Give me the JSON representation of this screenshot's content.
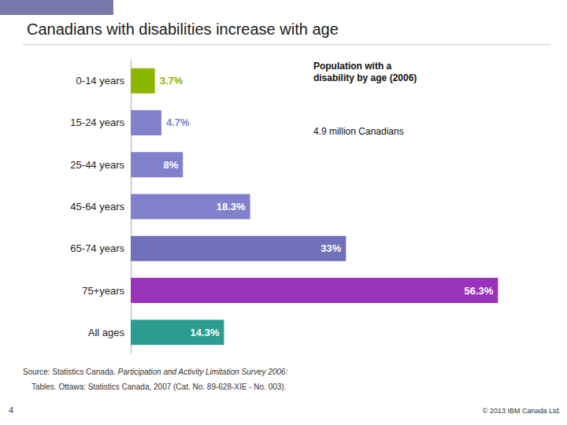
{
  "chart_data": {
    "type": "bar",
    "orientation": "horizontal",
    "title": "Canadians with disabilities increase with age",
    "categories": [
      "0-14 years",
      "15-24 years",
      "25-44 years",
      "45-64 years",
      "65-74 years",
      "75+years",
      "All ages"
    ],
    "values": [
      3.7,
      4.7,
      8.0,
      18.3,
      33.0,
      56.3,
      14.3
    ],
    "value_labels": [
      "3.7%",
      "4.7%",
      "8%",
      "18.3%",
      "33%",
      "56.3%",
      "14.3%"
    ],
    "colors": [
      "#8db600",
      "#8080cc",
      "#8080cc",
      "#8080cc",
      "#7070bb",
      "#9933bb",
      "#2a9d8f"
    ],
    "xlim": [
      0,
      60
    ],
    "data_labels": true,
    "tick_labels": "y",
    "grid": false,
    "annotations": [
      "Population with a\ndisability by age (2006)",
      "4.9 million Canadians"
    ],
    "source": [
      "Source: Statistics Canada. ",
      "Participation and Activity Limitation Survey 2006:",
      "    Tables. Ottawa: Statistics Canada, 2007 (Cat. No. 89-628-XIE - No. 003)."
    ],
    "footer": [
      "4",
      "© 2013 IBM Canada Ltd."
    ]
  }
}
